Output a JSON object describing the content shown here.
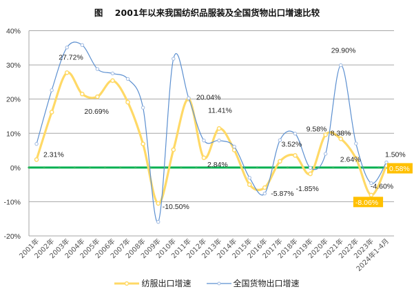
{
  "chart_data": {
    "type": "line",
    "title": "图    2001年以来我国纺织品服装及全国货物出口增速比较",
    "xlabel": "",
    "ylabel": "",
    "ylim": [
      -20,
      40
    ],
    "yticks": [
      40,
      30,
      20,
      10,
      0,
      -10,
      -20
    ],
    "ytick_labels": [
      "40%",
      "30%",
      "20%",
      "10%",
      "0%",
      "-10%",
      "-20%"
    ],
    "grid": true,
    "legend_position": "bottom",
    "categories": [
      "2001年",
      "2002年",
      "2003年",
      "2004年",
      "2005年",
      "2006年",
      "2007年",
      "2008年",
      "2009年",
      "2010年",
      "2011年",
      "2012年",
      "2013年",
      "2014年",
      "2015年",
      "2016年",
      "2017年",
      "2018年",
      "2019年",
      "2020年",
      "2021年",
      "2022年",
      "2023年",
      "2024年1-4月"
    ],
    "series": [
      {
        "name": "纺服出口增速",
        "color": "#FFD966",
        "values": [
          2.31,
          16.2,
          27.72,
          21.5,
          20.69,
          25.4,
          19.1,
          6.9,
          -10.5,
          5.2,
          20.04,
          2.84,
          11.41,
          5.1,
          -5.0,
          -5.87,
          1.8,
          3.52,
          -1.85,
          9.58,
          8.38,
          2.64,
          -8.06,
          0.58
        ],
        "labels": {
          "0": "2.31%",
          "2": "27.72%",
          "4": "20.69%",
          "8": "-10.50%",
          "10": "20.04%",
          "11": "2.84%",
          "12": "11.41%",
          "15": "-5.87%",
          "17": "3.52%",
          "18": "-1.85%",
          "19": "9.58%",
          "20": "8.38%",
          "21": "2.64%",
          "22": "-8.06%",
          "23": "0.58%"
        },
        "boxed_labels": [
          "22",
          "23"
        ]
      },
      {
        "name": "全国货物出口增速",
        "color": "#5B8FD0",
        "values": [
          6.9,
          22.6,
          35.1,
          35.8,
          28.8,
          27.5,
          25.9,
          17.5,
          -15.9,
          31.8,
          20.3,
          7.9,
          7.9,
          6.1,
          -3.0,
          -7.6,
          8.0,
          9.9,
          -0.1,
          4.0,
          29.9,
          7.0,
          -4.6,
          1.5
        ],
        "labels": {
          "20": "29.90%",
          "22": "-4.60%",
          "23": "1.50%"
        },
        "boxed_labels": []
      }
    ],
    "reference_line": {
      "value": 0,
      "color": "#00B050"
    },
    "box_label_color": "#FFC000"
  },
  "legend": {
    "items": [
      {
        "label": "纺服出口增速",
        "color": "#FFD966"
      },
      {
        "label": "全国货物出口增速",
        "color": "#5B8FD0"
      }
    ]
  }
}
